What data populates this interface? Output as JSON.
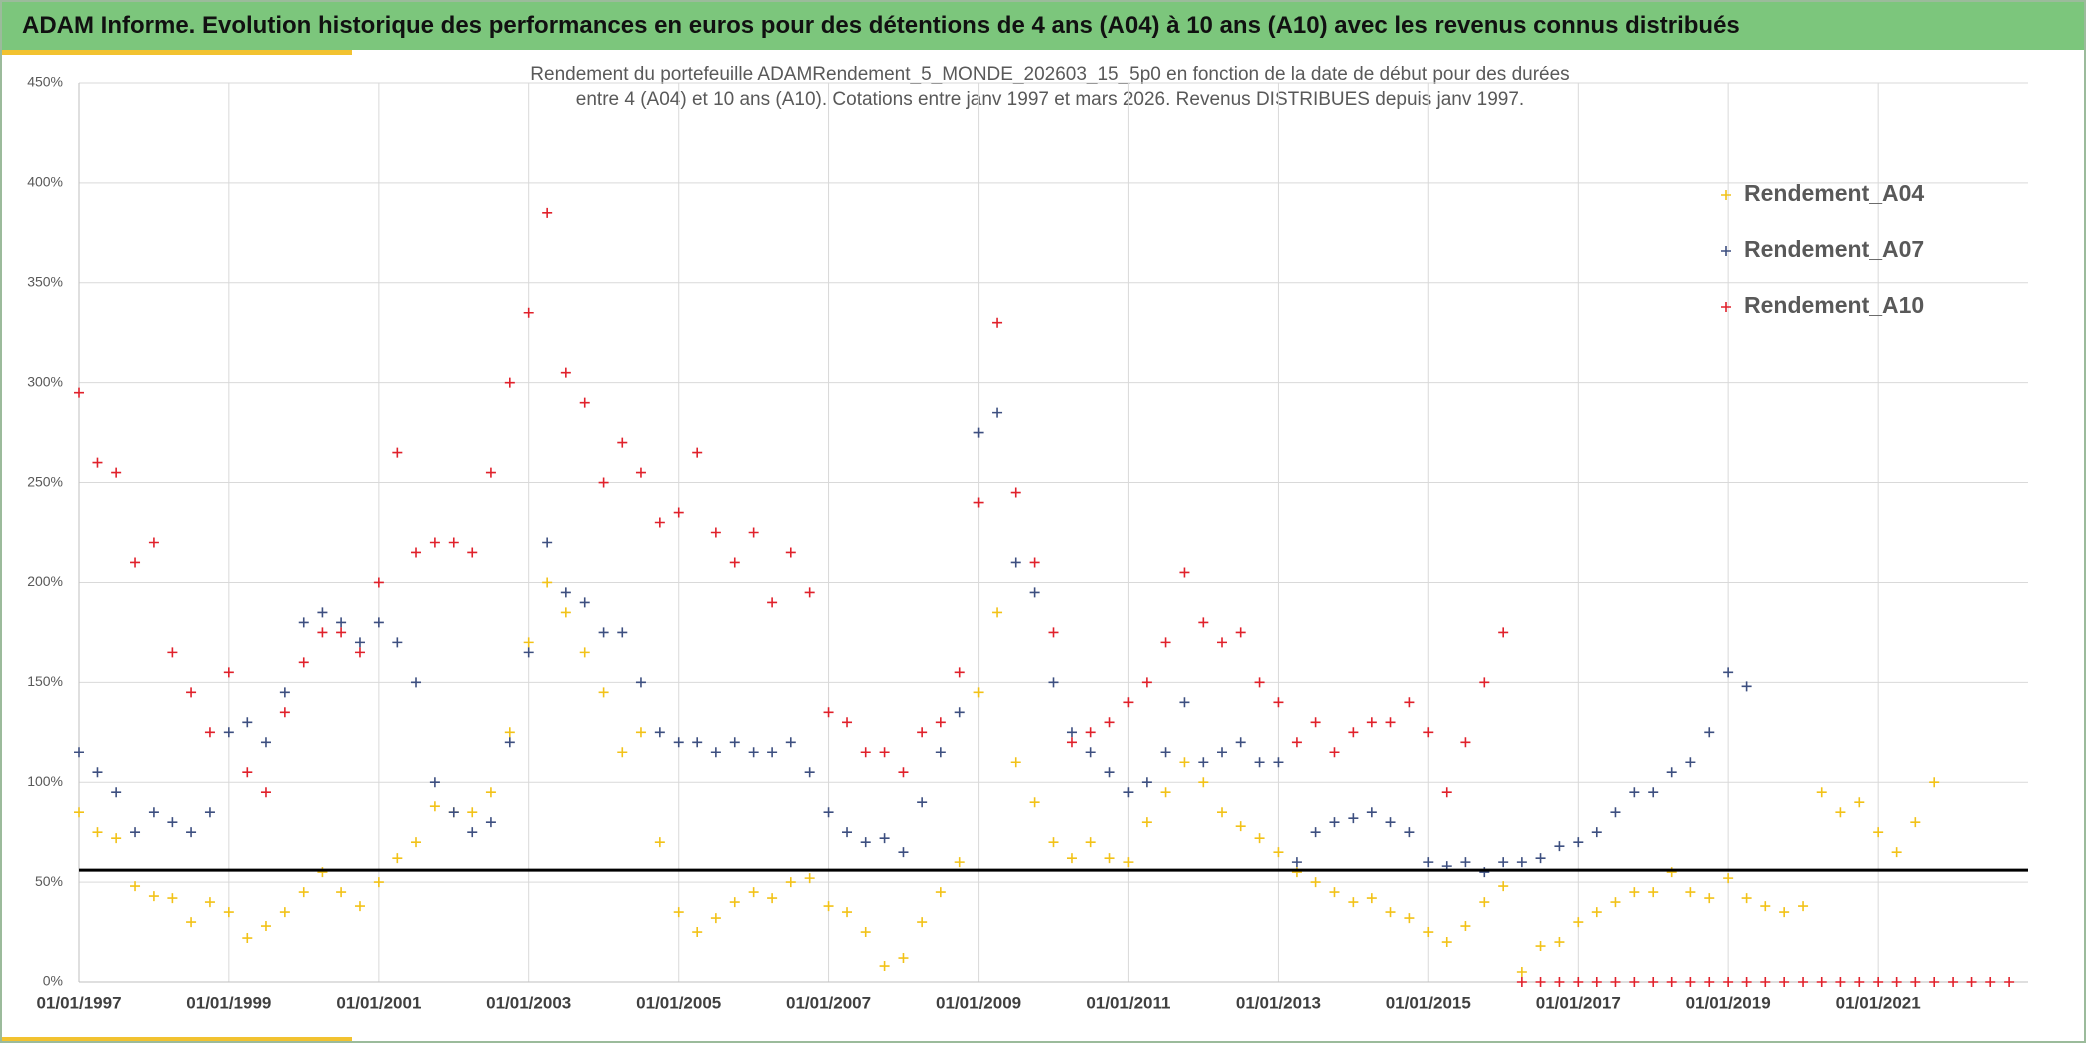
{
  "header": {
    "title": "ADAM Informe. Evolution historique des performances en euros pour des détentions de 4 ans (A04) à 10 ans (A10) avec les revenus connus distribués"
  },
  "chart_data": {
    "type": "scatter",
    "title": [
      "Rendement du portefeuille ADAMRendement_5_MONDE_202603_15_5p0  en fonction de la date de début pour des durées",
      "entre 4 (A04) et 10 ans (A10). Cotations entre janv 1997 et mars 2026. Revenus DISTRIBUES depuis janv 1997."
    ],
    "x": [
      "1997-01-01",
      "1997-04-01",
      "1997-07-01",
      "1997-10-01",
      "1998-01-01",
      "1998-04-01",
      "1998-07-01",
      "1998-10-01",
      "1999-01-01",
      "1999-04-01",
      "1999-07-01",
      "1999-10-01",
      "2000-01-01",
      "2000-04-01",
      "2000-07-01",
      "2000-10-01",
      "2001-01-01",
      "2001-04-01",
      "2001-07-01",
      "2001-10-01",
      "2002-01-01",
      "2002-04-01",
      "2002-07-01",
      "2002-10-01",
      "2003-01-01",
      "2003-04-01",
      "2003-07-01",
      "2003-10-01",
      "2004-01-01",
      "2004-04-01",
      "2004-07-01",
      "2004-10-01",
      "2005-01-01",
      "2005-04-01",
      "2005-07-01",
      "2005-10-01",
      "2006-01-01",
      "2006-04-01",
      "2006-07-01",
      "2006-10-01",
      "2007-01-01",
      "2007-04-01",
      "2007-07-01",
      "2007-10-01",
      "2008-01-01",
      "2008-04-01",
      "2008-07-01",
      "2008-10-01",
      "2009-01-01",
      "2009-04-01",
      "2009-07-01",
      "2009-10-01",
      "2010-01-01",
      "2010-04-01",
      "2010-07-01",
      "2010-10-01",
      "2011-01-01",
      "2011-04-01",
      "2011-07-01",
      "2011-10-01",
      "2012-01-01",
      "2012-04-01",
      "2012-07-01",
      "2012-10-01",
      "2013-01-01",
      "2013-04-01",
      "2013-07-01",
      "2013-10-01",
      "2014-01-01",
      "2014-04-01",
      "2014-07-01",
      "2014-10-01",
      "2015-01-01",
      "2015-04-01",
      "2015-07-01",
      "2015-10-01",
      "2016-01-01",
      "2016-04-01",
      "2016-07-01",
      "2016-10-01",
      "2017-01-01",
      "2017-04-01",
      "2017-07-01",
      "2017-10-01",
      "2018-01-01",
      "2018-04-01",
      "2018-07-01",
      "2018-10-01",
      "2019-01-01",
      "2019-04-01",
      "2019-07-01",
      "2019-10-01",
      "2020-01-01",
      "2020-04-01",
      "2020-07-01",
      "2020-10-01",
      "2021-01-01",
      "2021-04-01",
      "2021-07-01",
      "2021-10-01",
      "2022-01-01",
      "2022-04-01",
      "2022-07-01",
      "2022-10-01"
    ],
    "series": [
      {
        "name": "Rendement_A04",
        "color": "#f2c218",
        "values": [
          85,
          75,
          72,
          48,
          43,
          42,
          30,
          40,
          35,
          22,
          28,
          35,
          45,
          55,
          45,
          38,
          50,
          62,
          70,
          88,
          85,
          85,
          95,
          125,
          170,
          200,
          185,
          165,
          145,
          115,
          125,
          70,
          35,
          25,
          32,
          40,
          45,
          42,
          50,
          52,
          38,
          35,
          25,
          8,
          12,
          30,
          45,
          60,
          145,
          185,
          110,
          90,
          70,
          62,
          70,
          62,
          60,
          80,
          95,
          110,
          100,
          85,
          78,
          72,
          65,
          55,
          50,
          45,
          40,
          42,
          35,
          32,
          25,
          20,
          28,
          40,
          48,
          5,
          18,
          20,
          30,
          35,
          40,
          45,
          45,
          55,
          45,
          42,
          52,
          42,
          38,
          35,
          38,
          95,
          85,
          90,
          75,
          65,
          80,
          100,
          null,
          null,
          null,
          null
        ]
      },
      {
        "name": "Rendement_A07",
        "color": "#3d4f80",
        "values": [
          115,
          105,
          95,
          75,
          85,
          80,
          75,
          85,
          125,
          130,
          120,
          145,
          180,
          185,
          180,
          170,
          180,
          170,
          150,
          100,
          85,
          75,
          80,
          120,
          165,
          220,
          195,
          190,
          175,
          175,
          150,
          125,
          120,
          120,
          115,
          120,
          115,
          115,
          120,
          105,
          85,
          75,
          70,
          72,
          65,
          90,
          115,
          135,
          275,
          285,
          210,
          195,
          150,
          125,
          115,
          105,
          95,
          100,
          115,
          140,
          110,
          115,
          120,
          110,
          110,
          60,
          75,
          80,
          82,
          85,
          80,
          75,
          60,
          58,
          60,
          55,
          60,
          60,
          62,
          68,
          70,
          75,
          85,
          95,
          95,
          105,
          110,
          125,
          155,
          148,
          null,
          null,
          null,
          null,
          null,
          null,
          null,
          null,
          null,
          null,
          null,
          null,
          null,
          null
        ]
      },
      {
        "name": "Rendement_A10",
        "color": "#e0212b",
        "values": [
          295,
          260,
          255,
          210,
          220,
          165,
          145,
          125,
          155,
          105,
          95,
          135,
          160,
          175,
          175,
          165,
          200,
          265,
          215,
          220,
          220,
          215,
          255,
          300,
          335,
          385,
          305,
          290,
          250,
          270,
          255,
          230,
          235,
          265,
          225,
          210,
          225,
          190,
          215,
          195,
          135,
          130,
          115,
          115,
          105,
          125,
          130,
          155,
          240,
          330,
          245,
          210,
          175,
          120,
          125,
          130,
          140,
          150,
          170,
          205,
          180,
          170,
          175,
          150,
          140,
          120,
          130,
          115,
          125,
          130,
          130,
          140,
          125,
          95,
          120,
          150,
          175,
          0,
          0,
          0,
          0,
          0,
          0,
          0,
          0,
          0,
          0,
          0,
          0,
          0,
          0,
          0,
          0,
          0,
          0,
          0,
          0,
          0,
          0,
          0,
          0,
          0,
          0,
          0
        ]
      }
    ],
    "xlim": [
      "1997-01-01",
      "2023-01-01"
    ],
    "xticks": [
      {
        "value": "1997-01-01",
        "label": "01/01/1997"
      },
      {
        "value": "1999-01-01",
        "label": "01/01/1999"
      },
      {
        "value": "2001-01-01",
        "label": "01/01/2001"
      },
      {
        "value": "2003-01-01",
        "label": "01/01/2003"
      },
      {
        "value": "2005-01-01",
        "label": "01/01/2005"
      },
      {
        "value": "2007-01-01",
        "label": "01/01/2007"
      },
      {
        "value": "2009-01-01",
        "label": "01/01/2009"
      },
      {
        "value": "2011-01-01",
        "label": "01/01/2011"
      },
      {
        "value": "2013-01-01",
        "label": "01/01/2013"
      },
      {
        "value": "2015-01-01",
        "label": "01/01/2015"
      },
      {
        "value": "2017-01-01",
        "label": "01/01/2017"
      },
      {
        "value": "2019-01-01",
        "label": "01/01/2019"
      },
      {
        "value": "2021-01-01",
        "label": "01/01/2021"
      }
    ],
    "ylim": [
      0,
      450
    ],
    "yticks": [
      {
        "value": 0,
        "label": "0%"
      },
      {
        "value": 50,
        "label": "50%"
      },
      {
        "value": 100,
        "label": "100%"
      },
      {
        "value": 150,
        "label": "150%"
      },
      {
        "value": 200,
        "label": "200%"
      },
      {
        "value": 250,
        "label": "250%"
      },
      {
        "value": 300,
        "label": "300%"
      },
      {
        "value": 350,
        "label": "350%"
      },
      {
        "value": 400,
        "label": "400%"
      },
      {
        "value": 450,
        "label": "450%"
      }
    ],
    "reference_line": 56,
    "grid": true,
    "legend": "upper right"
  }
}
